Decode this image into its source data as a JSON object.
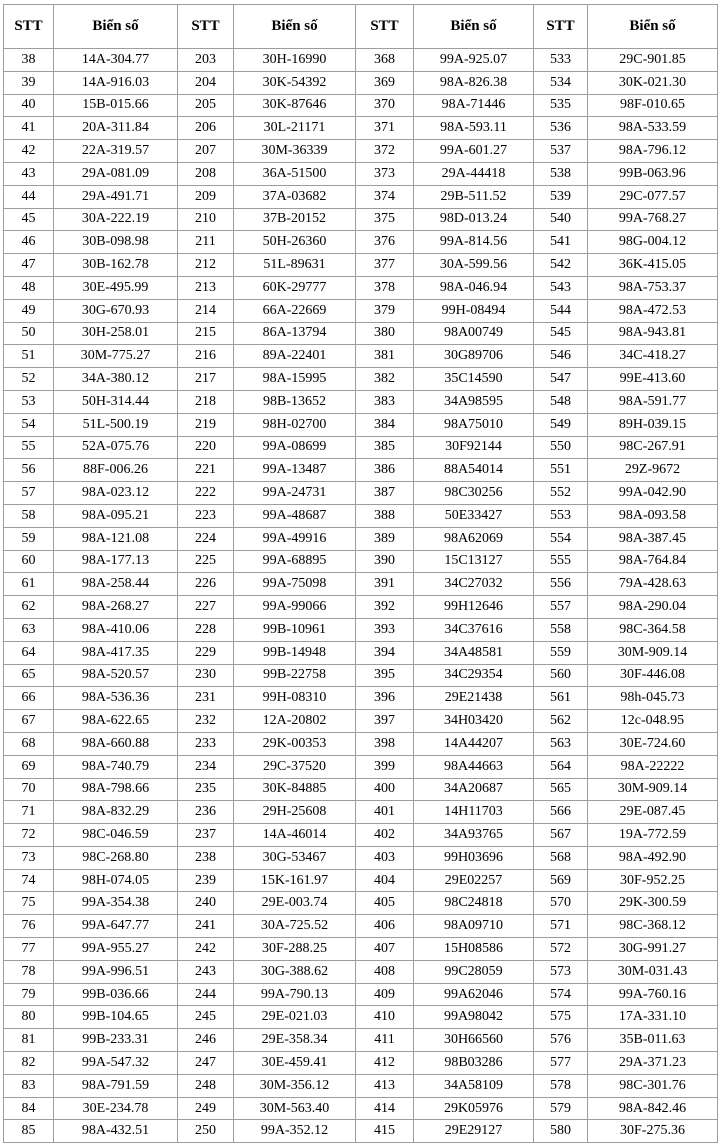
{
  "table": {
    "header_stt": "STT",
    "header_plate": "Biển số",
    "groups": [
      {
        "rows": [
          [
            "38",
            "14A-304.77"
          ],
          [
            "39",
            "14A-916.03"
          ],
          [
            "40",
            "15B-015.66"
          ],
          [
            "41",
            "20A-311.84"
          ],
          [
            "42",
            "22A-319.57"
          ],
          [
            "43",
            "29A-081.09"
          ],
          [
            "44",
            "29A-491.71"
          ],
          [
            "45",
            "30A-222.19"
          ],
          [
            "46",
            "30B-098.98"
          ],
          [
            "47",
            "30B-162.78"
          ],
          [
            "48",
            "30E-495.99"
          ],
          [
            "49",
            "30G-670.93"
          ],
          [
            "50",
            "30H-258.01"
          ],
          [
            "51",
            "30M-775.27"
          ],
          [
            "52",
            "34A-380.12"
          ],
          [
            "53",
            "50H-314.44"
          ],
          [
            "54",
            "51L-500.19"
          ],
          [
            "55",
            "52A-075.76"
          ],
          [
            "56",
            "88F-006.26"
          ],
          [
            "57",
            "98A-023.12"
          ],
          [
            "58",
            "98A-095.21"
          ],
          [
            "59",
            "98A-121.08"
          ],
          [
            "60",
            "98A-177.13"
          ],
          [
            "61",
            "98A-258.44"
          ],
          [
            "62",
            "98A-268.27"
          ],
          [
            "63",
            "98A-410.06"
          ],
          [
            "64",
            "98A-417.35"
          ],
          [
            "65",
            "98A-520.57"
          ],
          [
            "66",
            "98A-536.36"
          ],
          [
            "67",
            "98A-622.65"
          ],
          [
            "68",
            "98A-660.88"
          ],
          [
            "69",
            "98A-740.79"
          ],
          [
            "70",
            "98A-798.66"
          ],
          [
            "71",
            "98A-832.29"
          ],
          [
            "72",
            "98C-046.59"
          ],
          [
            "73",
            "98C-268.80"
          ],
          [
            "74",
            "98H-074.05"
          ],
          [
            "75",
            "99A-354.38"
          ],
          [
            "76",
            "99A-647.77"
          ],
          [
            "77",
            "99A-955.27"
          ],
          [
            "78",
            "99A-996.51"
          ],
          [
            "79",
            "99B-036.66"
          ],
          [
            "80",
            "99B-104.65"
          ],
          [
            "81",
            "99B-233.31"
          ],
          [
            "82",
            "99A-547.32"
          ],
          [
            "83",
            "98A-791.59"
          ],
          [
            "84",
            "30E-234.78"
          ],
          [
            "85",
            "98A-432.51"
          ]
        ]
      },
      {
        "rows": [
          [
            "203",
            "30H-16990"
          ],
          [
            "204",
            "30K-54392"
          ],
          [
            "205",
            "30K-87646"
          ],
          [
            "206",
            "30L-21171"
          ],
          [
            "207",
            "30M-36339"
          ],
          [
            "208",
            "36A-51500"
          ],
          [
            "209",
            "37A-03682"
          ],
          [
            "210",
            "37B-20152"
          ],
          [
            "211",
            "50H-26360"
          ],
          [
            "212",
            "51L-89631"
          ],
          [
            "213",
            "60K-29777"
          ],
          [
            "214",
            "66A-22669"
          ],
          [
            "215",
            "86A-13794"
          ],
          [
            "216",
            "89A-22401"
          ],
          [
            "217",
            "98A-15995"
          ],
          [
            "218",
            "98B-13652"
          ],
          [
            "219",
            "98H-02700"
          ],
          [
            "220",
            "99A-08699"
          ],
          [
            "221",
            "99A-13487"
          ],
          [
            "222",
            "99A-24731"
          ],
          [
            "223",
            "99A-48687"
          ],
          [
            "224",
            "99A-49916"
          ],
          [
            "225",
            "99A-68895"
          ],
          [
            "226",
            "99A-75098"
          ],
          [
            "227",
            "99A-99066"
          ],
          [
            "228",
            "99B-10961"
          ],
          [
            "229",
            "99B-14948"
          ],
          [
            "230",
            "99B-22758"
          ],
          [
            "231",
            "99H-08310"
          ],
          [
            "232",
            "12A-20802"
          ],
          [
            "233",
            "29K-00353"
          ],
          [
            "234",
            "29C-37520"
          ],
          [
            "235",
            "30K-84885"
          ],
          [
            "236",
            "29H-25608"
          ],
          [
            "237",
            "14A-46014"
          ],
          [
            "238",
            "30G-53467"
          ],
          [
            "239",
            "15K-161.97"
          ],
          [
            "240",
            "29E-003.74"
          ],
          [
            "241",
            "30A-725.52"
          ],
          [
            "242",
            "30F-288.25"
          ],
          [
            "243",
            "30G-388.62"
          ],
          [
            "244",
            "99A-790.13"
          ],
          [
            "245",
            "29E-021.03"
          ],
          [
            "246",
            "29E-358.34"
          ],
          [
            "247",
            "30E-459.41"
          ],
          [
            "248",
            "30M-356.12"
          ],
          [
            "249",
            "30M-563.40"
          ],
          [
            "250",
            "99A-352.12"
          ]
        ]
      },
      {
        "rows": [
          [
            "368",
            "99A-925.07"
          ],
          [
            "369",
            "98A-826.38"
          ],
          [
            "370",
            "98A-71446"
          ],
          [
            "371",
            "98A-593.11"
          ],
          [
            "372",
            "99A-601.27"
          ],
          [
            "373",
            "29A-44418"
          ],
          [
            "374",
            "29B-511.52"
          ],
          [
            "375",
            "98D-013.24"
          ],
          [
            "376",
            "99A-814.56"
          ],
          [
            "377",
            "30A-599.56"
          ],
          [
            "378",
            "98A-046.94"
          ],
          [
            "379",
            "99H-08494"
          ],
          [
            "380",
            "98A00749"
          ],
          [
            "381",
            "30G89706"
          ],
          [
            "382",
            "35C14590"
          ],
          [
            "383",
            "34A98595"
          ],
          [
            "384",
            "98A75010"
          ],
          [
            "385",
            "30F92144"
          ],
          [
            "386",
            "88A54014"
          ],
          [
            "387",
            "98C30256"
          ],
          [
            "388",
            "50E33427"
          ],
          [
            "389",
            "98A62069"
          ],
          [
            "390",
            "15C13127"
          ],
          [
            "391",
            "34C27032"
          ],
          [
            "392",
            "99H12646"
          ],
          [
            "393",
            "34C37616"
          ],
          [
            "394",
            "34A48581"
          ],
          [
            "395",
            "34C29354"
          ],
          [
            "396",
            "29E21438"
          ],
          [
            "397",
            "34H03420"
          ],
          [
            "398",
            "14A44207"
          ],
          [
            "399",
            "98A44663"
          ],
          [
            "400",
            "34A20687"
          ],
          [
            "401",
            "14H11703"
          ],
          [
            "402",
            "34A93765"
          ],
          [
            "403",
            "99H03696"
          ],
          [
            "404",
            "29E02257"
          ],
          [
            "405",
            "98C24818"
          ],
          [
            "406",
            "98A09710"
          ],
          [
            "407",
            "15H08586"
          ],
          [
            "408",
            "99C28059"
          ],
          [
            "409",
            "99A62046"
          ],
          [
            "410",
            "99A98042"
          ],
          [
            "411",
            "30H66560"
          ],
          [
            "412",
            "98B03286"
          ],
          [
            "413",
            "34A58109"
          ],
          [
            "414",
            "29K05976"
          ],
          [
            "415",
            "29E29127"
          ]
        ]
      },
      {
        "rows": [
          [
            "533",
            "29C-901.85"
          ],
          [
            "534",
            "30K-021.30"
          ],
          [
            "535",
            "98F-010.65"
          ],
          [
            "536",
            "98A-533.59"
          ],
          [
            "537",
            "98A-796.12"
          ],
          [
            "538",
            "99B-063.96"
          ],
          [
            "539",
            "29C-077.57"
          ],
          [
            "540",
            "99A-768.27"
          ],
          [
            "541",
            "98G-004.12"
          ],
          [
            "542",
            "36K-415.05"
          ],
          [
            "543",
            "98A-753.37"
          ],
          [
            "544",
            "98A-472.53"
          ],
          [
            "545",
            "98A-943.81"
          ],
          [
            "546",
            "34C-418.27"
          ],
          [
            "547",
            "99E-413.60"
          ],
          [
            "548",
            "98A-591.77"
          ],
          [
            "549",
            "89H-039.15"
          ],
          [
            "550",
            "98C-267.91"
          ],
          [
            "551",
            "29Z-9672"
          ],
          [
            "552",
            "99A-042.90"
          ],
          [
            "553",
            "98A-093.58"
          ],
          [
            "554",
            "98A-387.45"
          ],
          [
            "555",
            "98A-764.84"
          ],
          [
            "556",
            "79A-428.63"
          ],
          [
            "557",
            "98A-290.04"
          ],
          [
            "558",
            "98C-364.58"
          ],
          [
            "559",
            "30M-909.14"
          ],
          [
            "560",
            "30F-446.08"
          ],
          [
            "561",
            "98h-045.73"
          ],
          [
            "562",
            "12c-048.95"
          ],
          [
            "563",
            "30E-724.60"
          ],
          [
            "564",
            "98A-22222"
          ],
          [
            "565",
            "30M-909.14"
          ],
          [
            "566",
            "29E-087.45"
          ],
          [
            "567",
            "19A-772.59"
          ],
          [
            "568",
            "98A-492.90"
          ],
          [
            "569",
            "30F-952.25"
          ],
          [
            "570",
            "29K-300.59"
          ],
          [
            "571",
            "98C-368.12"
          ],
          [
            "572",
            "30G-991.27"
          ],
          [
            "573",
            "30M-031.43"
          ],
          [
            "574",
            "99A-760.16"
          ],
          [
            "575",
            "17A-331.10"
          ],
          [
            "576",
            "35B-011.63"
          ],
          [
            "577",
            "29A-371.23"
          ],
          [
            "578",
            "98C-301.76"
          ],
          [
            "579",
            "98A-842.46"
          ],
          [
            "580",
            "30F-275.36"
          ]
        ]
      }
    ]
  }
}
